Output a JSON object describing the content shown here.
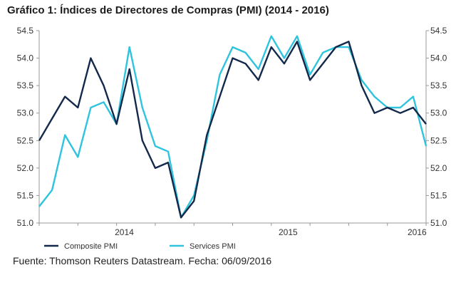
{
  "title": "Gráfico 1: Índices de Directores de Compras (PMI) (2014 - 2016)",
  "source": "Fuente: Thomson Reuters Datastream. Fecha: 06/09/2016",
  "colors": {
    "composite": "#13294b",
    "services": "#2ec4dd",
    "axis": "#999999"
  },
  "chart_data": {
    "type": "line",
    "title": "Gráfico 1: Índices de Directores de Compras (PMI) (2014 - 2016)",
    "xlabel": "",
    "ylabel": "",
    "ylim": [
      51.0,
      54.5
    ],
    "yticks": [
      "54.5",
      "54.0",
      "53.5",
      "53.0",
      "52.5",
      "52.0",
      "51.5",
      "51.0"
    ],
    "x_labels": [
      "2014",
      "2015",
      "2016"
    ],
    "series": [
      {
        "name": "Composite PMI",
        "values": [
          52.5,
          52.9,
          53.3,
          53.1,
          54.0,
          53.5,
          52.8,
          53.8,
          52.5,
          52.0,
          52.1,
          51.1,
          51.4,
          52.6,
          53.3,
          54.0,
          53.9,
          53.6,
          54.2,
          53.9,
          54.3,
          53.6,
          53.9,
          54.2,
          54.3,
          53.5,
          53.0,
          53.1,
          53.0,
          53.1,
          52.8
        ]
      },
      {
        "name": "Services PMI",
        "values": [
          51.3,
          51.6,
          52.6,
          52.2,
          53.1,
          53.2,
          52.8,
          54.2,
          53.1,
          52.4,
          52.3,
          51.1,
          51.5,
          52.5,
          53.7,
          54.2,
          54.1,
          53.8,
          54.4,
          54.0,
          54.4,
          53.7,
          54.1,
          54.2,
          54.2,
          53.6,
          53.3,
          53.1,
          53.1,
          53.3,
          52.4
        ]
      }
    ],
    "legend": {
      "position": "bottom-left"
    },
    "grid": false
  }
}
